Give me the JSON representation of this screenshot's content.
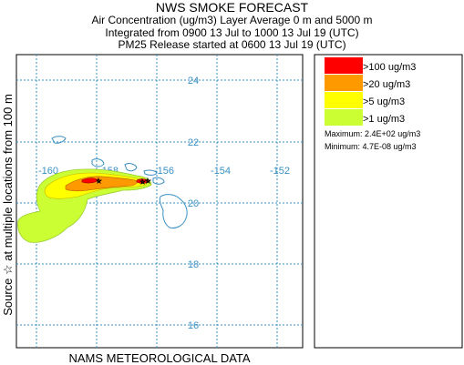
{
  "header": {
    "title": "NWS SMOKE FORECAST",
    "line2": "Air Concentration (ug/m3) Layer Average    0 m and  5000 m",
    "line3": "Integrated from 0900 13 Jul to 1000 13 Jul 19 (UTC)",
    "line4": "PM25 Release started at 0600 13 Jul 19 (UTC)"
  },
  "side_label": "Source ☆    at multiple locations          from   100 m",
  "bottom_label": "NAMS METEOROLOGICAL DATA",
  "map": {
    "lon_labels": [
      "-160",
      "-158",
      "-156",
      "-154",
      "-152"
    ],
    "lat_labels": [
      "24",
      "22",
      "20",
      "18",
      "16"
    ]
  },
  "legend": {
    "items": [
      {
        "label": ">100 ug/m3",
        "color": "#ff0000"
      },
      {
        "label": ">20 ug/m3",
        "color": "#ff9900"
      },
      {
        "label": ">5 ug/m3",
        "color": "#ffff00"
      },
      {
        "label": ">1 ug/m3",
        "color": "#ccff33"
      }
    ],
    "maximum": "Maximum: 2.4E+02 ug/m3",
    "minimum": "Minimum: 4.7E-08 ug/m3"
  },
  "colors": {
    "grid": "#3a8fc0",
    "coast": "#3a8fc0",
    "source_marker": "#000000"
  }
}
